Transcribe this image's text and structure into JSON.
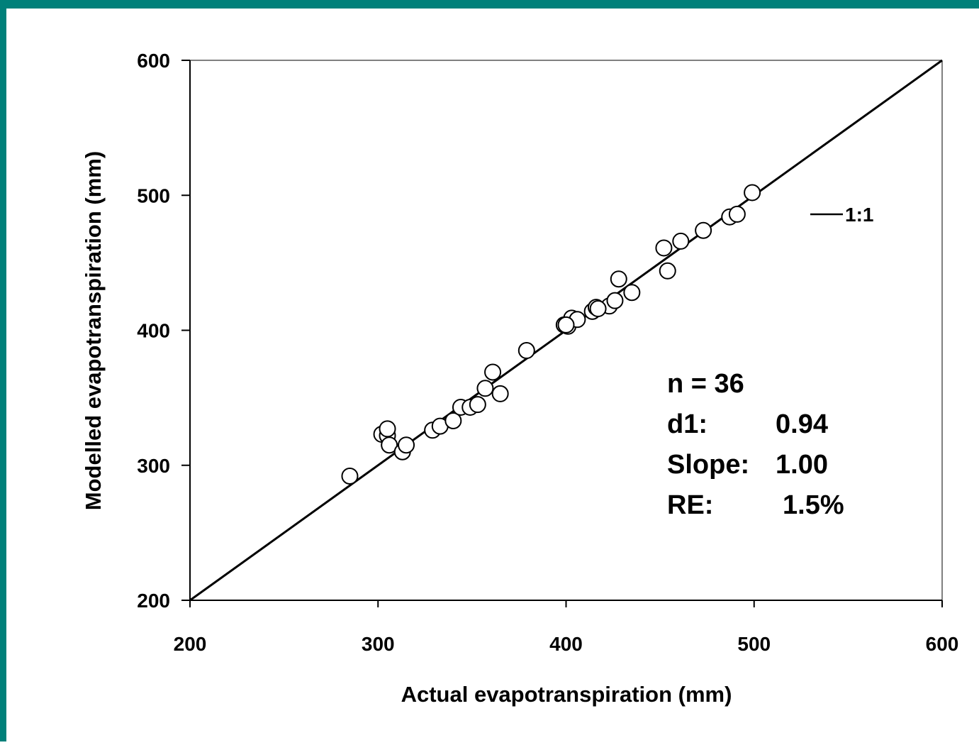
{
  "chart_data": {
    "type": "scatter",
    "xlabel": "Actual evapotranspiration (mm)",
    "ylabel": "Modelled evapotranspiration (mm)",
    "xlim": [
      200,
      600
    ],
    "ylim": [
      200,
      600
    ],
    "xticks": [
      "200",
      "300",
      "400",
      "500",
      "600"
    ],
    "yticks": [
      "200",
      "300",
      "400",
      "500",
      "600"
    ],
    "grid": false,
    "legend": {
      "position": "top-right",
      "entries": [
        "1:1"
      ]
    },
    "reference_line": {
      "name": "1:1",
      "from": [
        200,
        200
      ],
      "to": [
        600,
        600
      ]
    },
    "points": [
      [
        285,
        292
      ],
      [
        302,
        323
      ],
      [
        305,
        322
      ],
      [
        305,
        327
      ],
      [
        306,
        315
      ],
      [
        313,
        310
      ],
      [
        315,
        315
      ],
      [
        329,
        326
      ],
      [
        333,
        329
      ],
      [
        340,
        333
      ],
      [
        344,
        343
      ],
      [
        349,
        343
      ],
      [
        353,
        345
      ],
      [
        357,
        357
      ],
      [
        361,
        369
      ],
      [
        365,
        353
      ],
      [
        379,
        385
      ],
      [
        399,
        404
      ],
      [
        401,
        403
      ],
      [
        403,
        409
      ],
      [
        406,
        408
      ],
      [
        414,
        414
      ],
      [
        416,
        417
      ],
      [
        423,
        418
      ],
      [
        426,
        422
      ],
      [
        428,
        438
      ],
      [
        435,
        428
      ],
      [
        452,
        461
      ],
      [
        454,
        444
      ],
      [
        461,
        466
      ],
      [
        473,
        474
      ],
      [
        487,
        484
      ],
      [
        491,
        486
      ],
      [
        499,
        502
      ],
      [
        400,
        404
      ],
      [
        417,
        416
      ]
    ],
    "stats": [
      {
        "label": "n = 36",
        "value": ""
      },
      {
        "label": "d1:",
        "value": "0.94"
      },
      {
        "label": "Slope:",
        "value": "1.00"
      },
      {
        "label": "RE:",
        "value": "1.5%"
      }
    ]
  }
}
